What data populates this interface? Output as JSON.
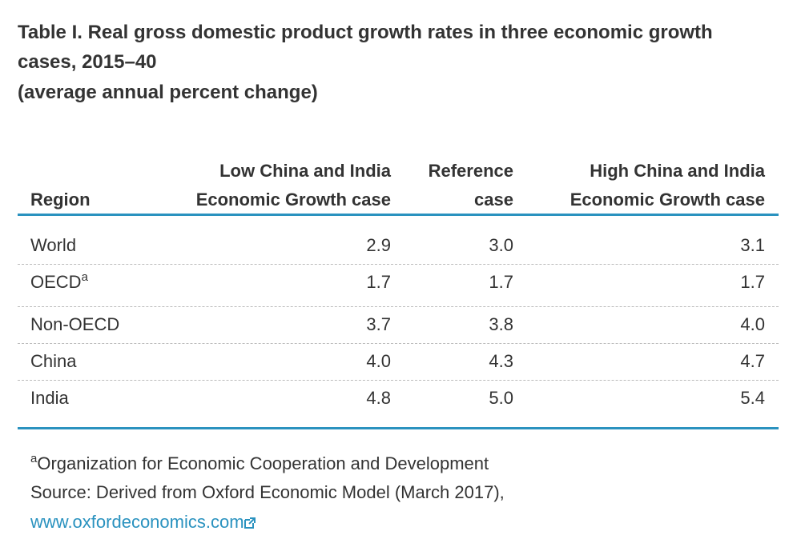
{
  "title": "Table I. Real gross domestic product growth rates in three economic growth cases, 2015–40",
  "subtitle": "(average annual percent change)",
  "table": {
    "headers": [
      "Region",
      "Low China and India Economic Growth case",
      "Reference case",
      "High China and India Economic Growth case"
    ],
    "rows": [
      {
        "region": "World",
        "sup": null,
        "cells": [
          "2.9",
          "3.0",
          "3.1"
        ]
      },
      {
        "region": "OECD",
        "sup": "a",
        "cells": [
          "1.7",
          "1.7",
          "1.7"
        ]
      },
      {
        "region": "Non-OECD",
        "sup": null,
        "cells": [
          "3.7",
          "3.8",
          "4.0"
        ]
      },
      {
        "region": "China",
        "sup": null,
        "cells": [
          "4.0",
          "4.3",
          "4.7"
        ]
      },
      {
        "region": "India",
        "sup": null,
        "cells": [
          "4.8",
          "5.0",
          "5.4"
        ]
      }
    ]
  },
  "footnote": {
    "sup": "a",
    "text": "Organization for Economic Cooperation and Development"
  },
  "source": {
    "text": "Source: Derived from Oxford Economic Model (March 2017),",
    "link": "www.oxfordeconomics.com"
  }
}
